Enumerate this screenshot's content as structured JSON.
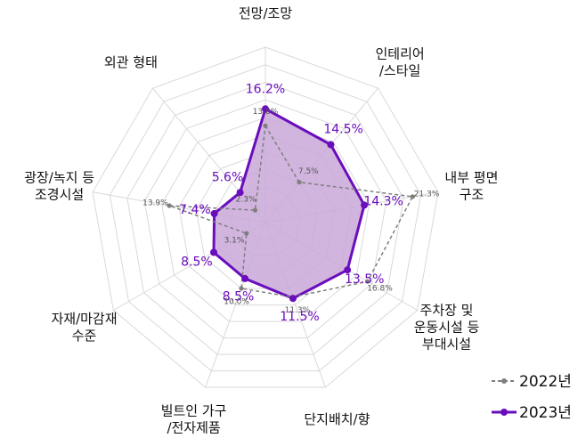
{
  "chart_data": {
    "type": "radar",
    "categories": [
      "전망/조망",
      "인테리어\n/스타일",
      "내부 평면\n구조",
      "주차장 및\n운동시설 등\n부대시설",
      "단지배치/향",
      "빌트인 가구\n/전자제품",
      "자재/마감재\n수준",
      "광장/녹지 등\n조경시설",
      "외관 형태"
    ],
    "series": [
      {
        "name": "2022년",
        "values": [
          13.8,
          7.5,
          21.3,
          16.8,
          11.3,
          10.0,
          3.1,
          13.9,
          2.3
        ],
        "labels": [
          "13.8%",
          "7.5%",
          "21.3%",
          "16.8%",
          "11.3%",
          "10.0%",
          "3.1%",
          "13.9%",
          "2.3%"
        ],
        "color": "#7f7f7f",
        "style": "dashed"
      },
      {
        "name": "2023년",
        "values": [
          16.2,
          14.5,
          14.3,
          13.5,
          11.5,
          8.5,
          8.5,
          7.4,
          5.6
        ],
        "labels": [
          "16.2%",
          "14.5%",
          "14.3%",
          "13.5%",
          "11.5%",
          "8.5%",
          "8.5%",
          "7.4%",
          "5.6%"
        ],
        "color": "#6a0dbd",
        "fill": "#c9a8d8"
      }
    ],
    "rmax": 25,
    "rings": 10,
    "grid": true,
    "legend": "bottom-right"
  }
}
